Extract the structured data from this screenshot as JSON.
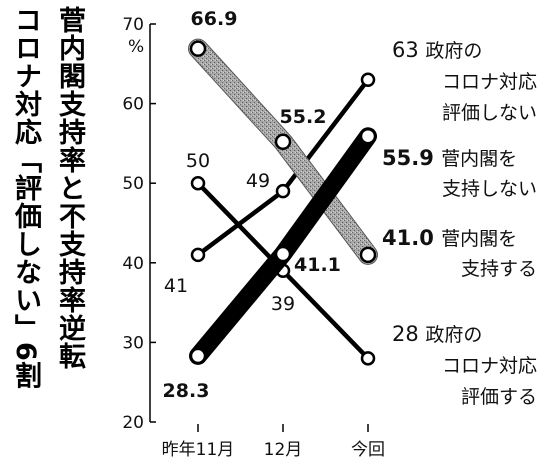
{
  "title": "菅内閣支持率と不支持率逆転",
  "subtitle": "コロナ対応「評価しない」6割",
  "chart_data": {
    "type": "line",
    "categories": [
      "昨年11月",
      "12月",
      "今回"
    ],
    "ylim": [
      20,
      70
    ],
    "yticks": [
      20,
      30,
      40,
      50,
      60,
      70
    ],
    "y_unit_label": "%",
    "grid": false,
    "series": [
      {
        "name": "菅内閣を支持しない",
        "values": [
          28.3,
          41.1,
          55.9
        ],
        "value_labels": [
          "28.3",
          "41.1",
          "55.9"
        ],
        "style": "thick-black",
        "color": "#000000",
        "legend_lines": [
          "55.9 菅内閣を",
          "支持しない"
        ]
      },
      {
        "name": "菅内閣を支持する",
        "values": [
          66.9,
          55.2,
          41.0
        ],
        "value_labels": [
          "66.9",
          "55.2",
          "41.0"
        ],
        "style": "thick-gray",
        "color": "#8a8a8a",
        "legend_lines": [
          "41.0 菅内閣を",
          "支持する"
        ]
      },
      {
        "name": "政府のコロナ対応評価しない",
        "values": [
          41,
          49,
          63
        ],
        "value_labels": [
          "41",
          "49",
          "63"
        ],
        "style": "thin-black",
        "color": "#000000",
        "legend_lines": [
          "63 政府の",
          "コロナ対応",
          "評価しない"
        ]
      },
      {
        "name": "政府のコロナ対応評価する",
        "values": [
          50,
          39,
          28
        ],
        "value_labels": [
          "50",
          "39",
          "28"
        ],
        "style": "thin-black",
        "color": "#000000",
        "legend_lines": [
          "28 政府の",
          "コロナ対応",
          "評価する"
        ]
      }
    ]
  }
}
